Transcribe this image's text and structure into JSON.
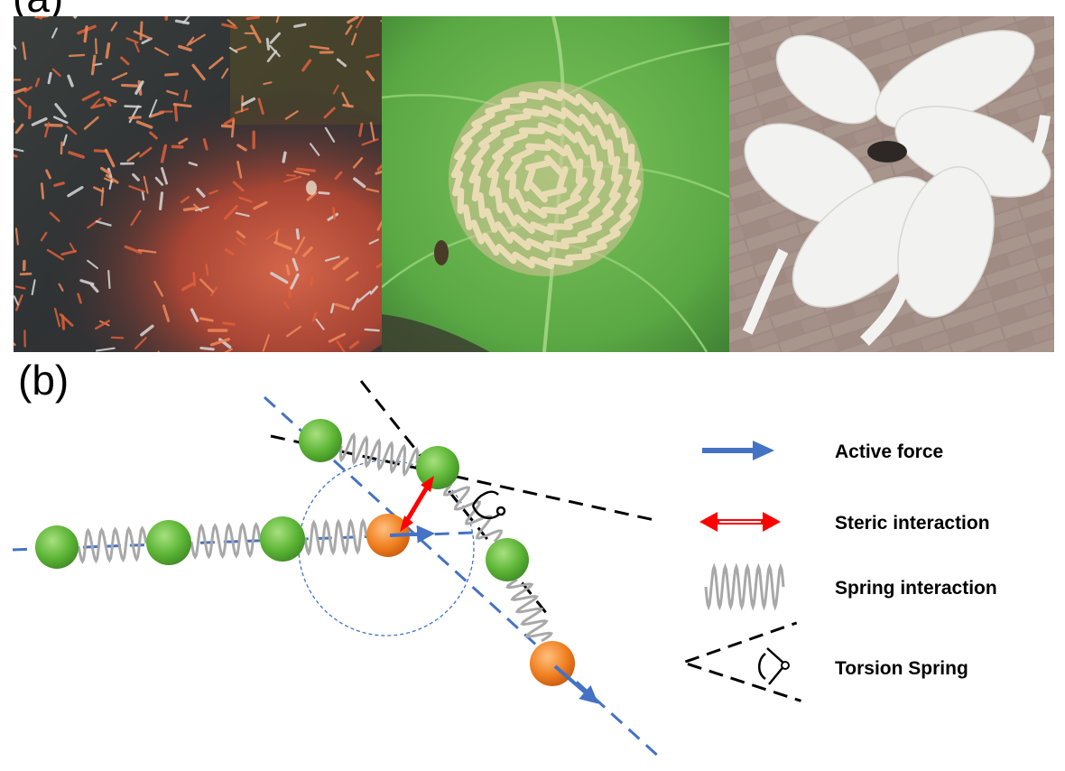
{
  "figure": {
    "panel_a_label": "(a)",
    "panel_b_label": "(b)"
  },
  "photos": [
    {
      "name": "fish-school-photo",
      "subject": "school of small red fish swirling in water"
    },
    {
      "name": "caterpillar-ring-photo",
      "subject": "caterpillars arranged in a circular mill on a green leaf"
    },
    {
      "name": "dogs-circle-photo",
      "subject": "white puppies circling nose-to-tail on brick pavement"
    }
  ],
  "legend": {
    "active_force": "Active force",
    "steric_interaction": "Steric interaction",
    "spring_interaction": "Spring interaction",
    "torsion_spring": "Torsion Spring"
  },
  "colors": {
    "active_force": "#4472c4",
    "steric": "#ff0000",
    "bead_body": "#55b030",
    "bead_head": "#f08020",
    "spring": "#a8a8a8",
    "guide_line": "#000000"
  }
}
